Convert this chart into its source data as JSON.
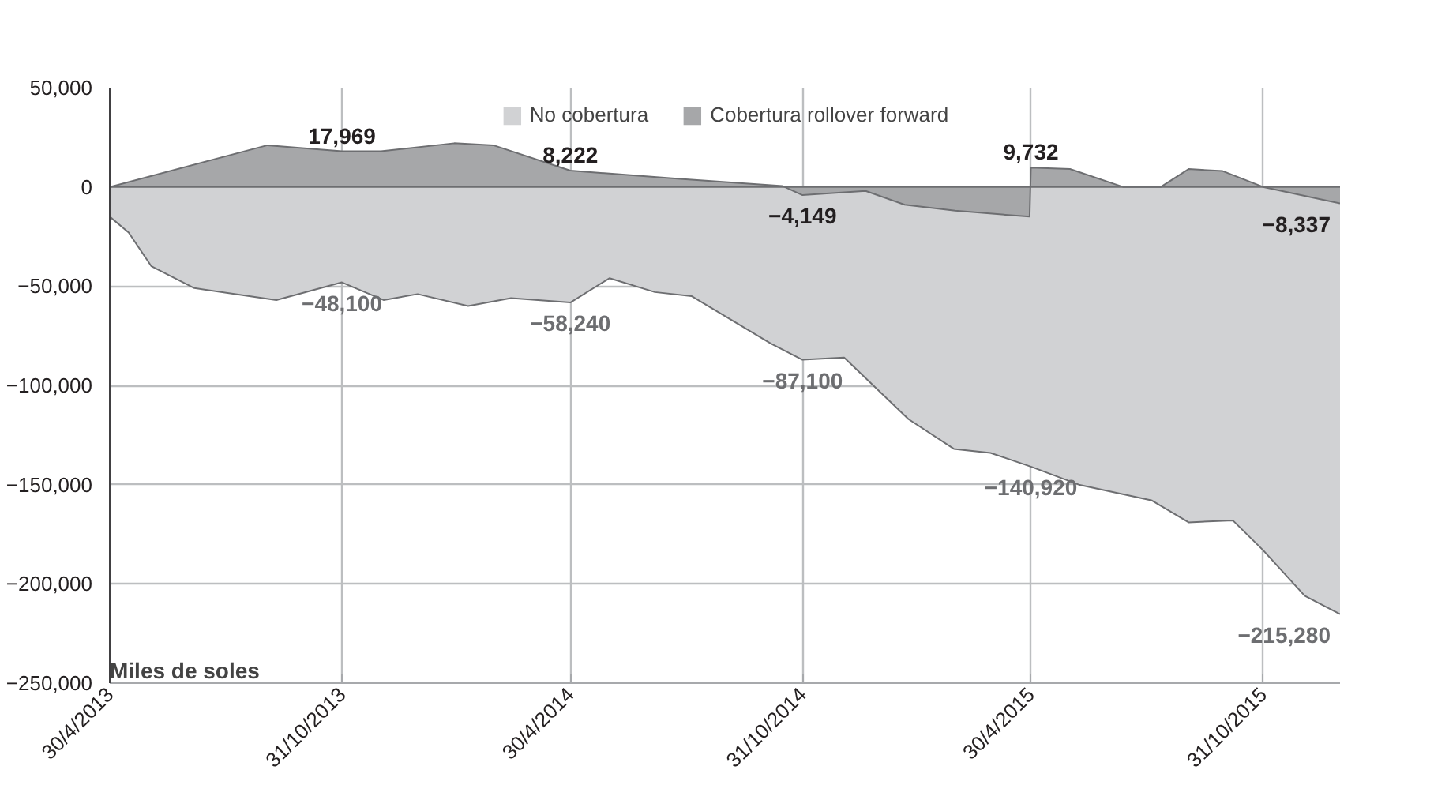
{
  "chart_data": {
    "type": "area",
    "ylabel": "Miles de soles",
    "legend": "top",
    "grid": true,
    "xlim": [
      "2013-04-30",
      "2015-12-31"
    ],
    "xticks": [
      {
        "value": "2013-04-30",
        "label": "30/4/2013"
      },
      {
        "value": "2013-10-31",
        "label": "31/10/2013"
      },
      {
        "value": "2014-04-30",
        "label": "30/4/2014"
      },
      {
        "value": "2014-10-31",
        "label": "31/10/2014"
      },
      {
        "value": "2015-04-30",
        "label": "30/4/2015"
      },
      {
        "value": "2015-10-31",
        "label": "31/10/2015"
      }
    ],
    "ylim": [
      -250000,
      50000
    ],
    "yticks": [
      {
        "value": 50000,
        "label": "50,000"
      },
      0,
      {
        "value": -50000,
        "label": "−50,000"
      },
      {
        "value": -100000,
        "label": "−100,000"
      },
      {
        "value": -150000,
        "label": "−150,000"
      },
      {
        "value": -200000,
        "label": "−200,000"
      },
      {
        "value": -250000,
        "label": "−250,000"
      }
    ],
    "series": [
      {
        "name": "No cobertura",
        "color": "#d1d2d4",
        "x": [
          "2013-04-30",
          "2013-05-15",
          "2013-06-02",
          "2013-07-06",
          "2013-09-09",
          "2013-10-31",
          "2013-12-03",
          "2013-12-30",
          "2014-02-08",
          "2014-03-14",
          "2014-04-30",
          "2014-05-31",
          "2014-07-06",
          "2014-08-04",
          "2014-10-06",
          "2014-10-31",
          "2014-12-03",
          "2015-01-23",
          "2015-02-28",
          "2015-03-29",
          "2015-04-30",
          "2015-06-07",
          "2015-08-04",
          "2015-09-02",
          "2015-10-07",
          "2015-10-31",
          "2015-12-03",
          "2015-12-31"
        ],
        "values": [
          -15000,
          -23000,
          -40000,
          -51000,
          -57000,
          -48100,
          -57000,
          -54000,
          -60000,
          -56000,
          -58240,
          -46000,
          -53000,
          -55000,
          -79000,
          -87100,
          -86000,
          -117000,
          -132000,
          -134000,
          -140920,
          -150000,
          -158000,
          -169000,
          -168000,
          -183000,
          -206000,
          -215280
        ]
      },
      {
        "name": "Cobertura rollover forward",
        "color": "#a6a7a9",
        "x": [
          "2013-04-30",
          "2013-09-02",
          "2013-10-31",
          "2013-12-01",
          "2014-01-28",
          "2014-02-28",
          "2014-04-30",
          "2014-07-26",
          "2014-10-15",
          "2014-10-31",
          "2014-12-20",
          "2015-01-20",
          "2015-03-01",
          "2015-04-29",
          "2015-04-30",
          "2015-05-31",
          "2015-07-12",
          "2015-08-11",
          "2015-09-02",
          "2015-09-29",
          "2015-10-31",
          "2015-12-31"
        ],
        "values": [
          0,
          21000,
          17969,
          18000,
          22000,
          21000,
          8222,
          4000,
          500,
          -4149,
          -2000,
          -9000,
          -12000,
          -15000,
          9732,
          9000,
          0,
          0,
          9000,
          8000,
          0,
          -8337
        ]
      }
    ],
    "annotations": [
      {
        "text": "17,969",
        "x": "2013-10-31",
        "y": 17969
      },
      {
        "text": "−48,100",
        "x": "2013-10-31",
        "y": -48100
      },
      {
        "text": "8,222",
        "x": "2014-04-30",
        "y": 8222
      },
      {
        "text": "−58,240",
        "x": "2014-04-30",
        "y": -58240
      },
      {
        "text": "−4,149",
        "x": "2014-10-31",
        "y": -4149
      },
      {
        "text": "−87,100",
        "x": "2014-10-31",
        "y": -87100
      },
      {
        "text": "9,732",
        "x": "2015-04-30",
        "y": 9732
      },
      {
        "text": "−140,920",
        "x": "2015-04-30",
        "y": -140920
      },
      {
        "text": "−8,337",
        "x": "2015-12-31",
        "y": -8337
      },
      {
        "text": "−215,280",
        "x": "2015-12-31",
        "y": -215280
      }
    ]
  }
}
